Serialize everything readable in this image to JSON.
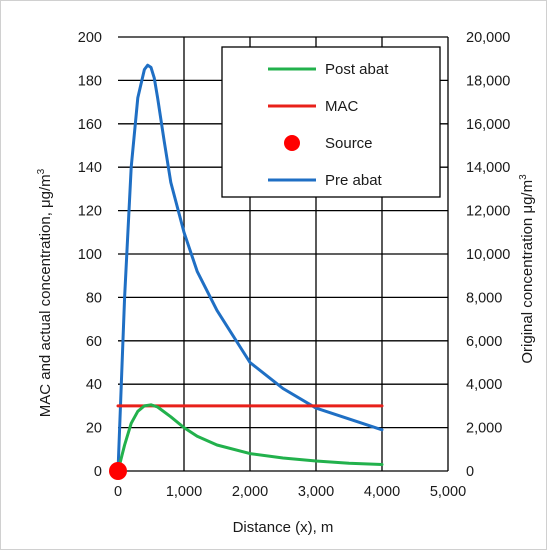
{
  "chart_data": {
    "type": "line",
    "xlabel": "Distance (x), m",
    "ylabel_left": "MAC and actual  concentration, μg/m",
    "ylabel_left_superscript": "3",
    "ylabel_right": "Original  concentration  μg/m",
    "ylabel_right_superscript": "3",
    "xlim": [
      0,
      5000
    ],
    "ylim_left": [
      0,
      200
    ],
    "ylim_right": [
      0,
      20000
    ],
    "x_ticks": [
      0,
      1000,
      2000,
      3000,
      4000,
      5000
    ],
    "x_tick_labels": [
      "0",
      "1,000",
      "2,000",
      "3,000",
      "4,000",
      "5,000"
    ],
    "y_left_ticks": [
      0,
      20,
      40,
      60,
      80,
      100,
      120,
      140,
      160,
      180,
      200
    ],
    "y_left_tick_labels": [
      "0",
      "20",
      "40",
      "60",
      "80",
      "100",
      "120",
      "140",
      "160",
      "180",
      "200"
    ],
    "y_right_ticks": [
      0,
      2000,
      4000,
      6000,
      8000,
      10000,
      12000,
      14000,
      16000,
      18000,
      20000
    ],
    "y_right_tick_labels": [
      "0",
      "2,000",
      "4,000",
      "6,000",
      "8,000",
      "10,000",
      "12,000",
      "14,000",
      "16,000",
      "18,000",
      "20,000"
    ],
    "grid": true,
    "legend_position": "top-right",
    "series": [
      {
        "name": "Post abat",
        "axis": "left",
        "color": "#22b14c",
        "x": [
          0,
          100,
          200,
          300,
          400,
          500,
          600,
          800,
          1000,
          1200,
          1500,
          2000,
          2500,
          3000,
          3500,
          4000
        ],
        "y": [
          0,
          12,
          22,
          27.5,
          30,
          30.5,
          29.5,
          25,
          20,
          16,
          12,
          8,
          6,
          4.6,
          3.6,
          3
        ]
      },
      {
        "name": "MAC",
        "axis": "left",
        "color": "#e8201a",
        "x": [
          0,
          4000
        ],
        "y": [
          30,
          30
        ]
      },
      {
        "name": "Source",
        "axis": "left",
        "color": "#ff0000",
        "marker": "circle",
        "x": [
          0
        ],
        "y": [
          0
        ]
      },
      {
        "name": "Pre abat",
        "axis": "right",
        "color": "#1f6fc4",
        "x": [
          0,
          100,
          200,
          300,
          400,
          450,
          500,
          550,
          600,
          700,
          800,
          1000,
          1200,
          1500,
          2000,
          2500,
          3000,
          3500,
          4000
        ],
        "y": [
          0,
          8000,
          14000,
          17200,
          18500,
          18700,
          18600,
          18100,
          17200,
          15200,
          13300,
          11000,
          9200,
          7400,
          5000,
          3800,
          2900,
          2400,
          1900
        ]
      }
    ]
  }
}
